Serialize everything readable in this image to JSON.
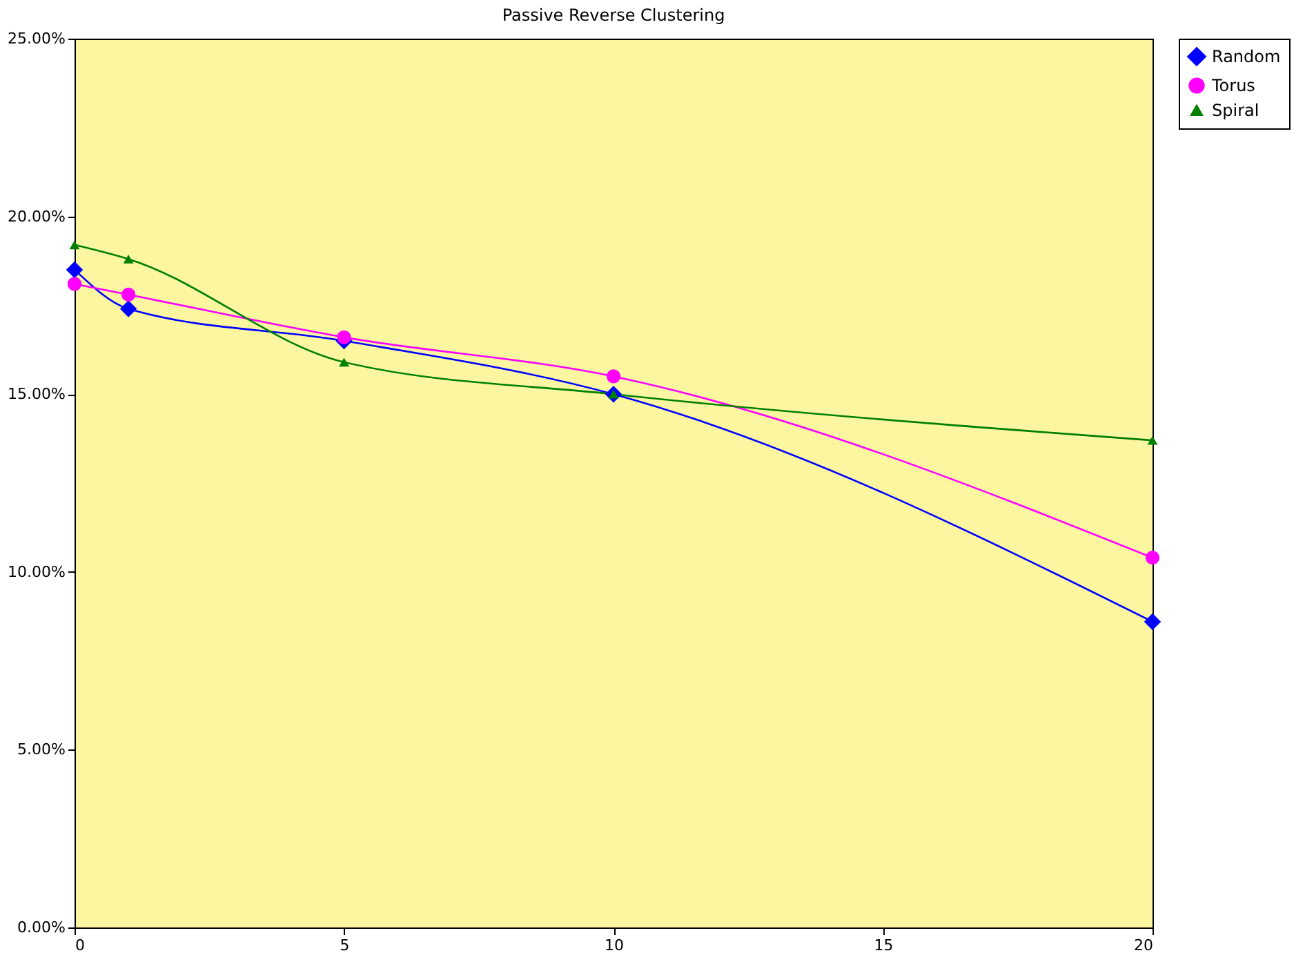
{
  "chart_data": {
    "type": "line",
    "title": "Passive Reverse Clustering",
    "x": [
      0,
      1,
      5,
      10,
      20
    ],
    "series": [
      {
        "name": "Random",
        "color": "#0000ff",
        "marker": "diamond",
        "values": [
          18.5,
          17.4,
          16.5,
          15.0,
          8.6
        ]
      },
      {
        "name": "Torus",
        "color": "#ff00ff",
        "marker": "circle",
        "values": [
          18.1,
          17.8,
          16.6,
          15.5,
          10.4
        ]
      },
      {
        "name": "Spiral",
        "color": "#008000",
        "marker": "triangle",
        "values": [
          19.2,
          18.8,
          15.9,
          15.0,
          13.7
        ]
      }
    ],
    "xlim": [
      0,
      20
    ],
    "xticks": [
      0,
      5,
      10,
      15,
      20
    ],
    "ylim": [
      0,
      25
    ],
    "yticks": [
      {
        "value": 0,
        "label": "0.00%"
      },
      {
        "value": 5,
        "label": "5.00%"
      },
      {
        "value": 10,
        "label": "10.00%"
      },
      {
        "value": 15,
        "label": "15.00%"
      },
      {
        "value": 20,
        "label": "20.00%"
      },
      {
        "value": 25,
        "label": "25.00%"
      }
    ],
    "grid": false,
    "legend": "right",
    "line_style": "solid"
  }
}
